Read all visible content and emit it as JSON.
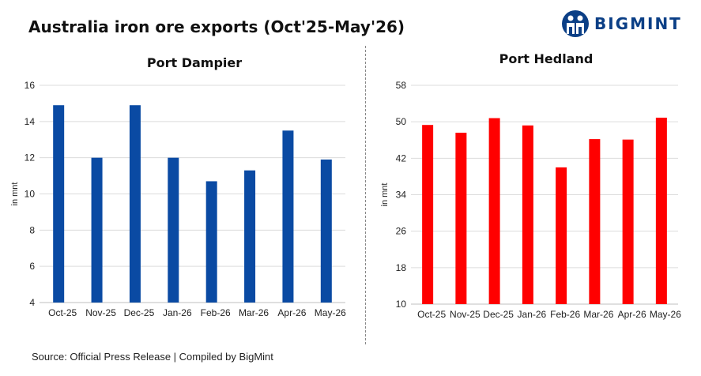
{
  "header": {
    "title": "Australia iron ore exports (Oct'25-May'26)",
    "logo_text": "BIGMINT"
  },
  "footer": {
    "source": "Source: Official Press Release | Compiled by BigMint"
  },
  "chart_data": [
    {
      "type": "bar",
      "title": "Port Dampier",
      "ylabel": "in mnt",
      "xlabel": "",
      "categories": [
        "Oct-25",
        "Nov-25",
        "Dec-25",
        "Jan-26",
        "Feb-26",
        "Mar-26",
        "Apr-26",
        "May-26"
      ],
      "values": [
        14.9,
        12.0,
        14.9,
        12.0,
        10.7,
        11.3,
        13.5,
        11.9
      ],
      "yticks": [
        4,
        6,
        8,
        10,
        12,
        14,
        16
      ],
      "ylim": [
        4,
        16
      ],
      "grid": true,
      "color": "#0a4aa3"
    },
    {
      "type": "bar",
      "title": "Port Hedland",
      "ylabel": "in mnt",
      "xlabel": "",
      "categories": [
        "Oct-25",
        "Nov-25",
        "Dec-25",
        "Jan-26",
        "Feb-26",
        "Mar-26",
        "Apr-26",
        "May-26"
      ],
      "values": [
        49.3,
        47.6,
        50.8,
        49.2,
        40.0,
        46.2,
        46.1,
        50.9
      ],
      "yticks": [
        10,
        18,
        26,
        34,
        42,
        50,
        58
      ],
      "ylim": [
        10,
        58
      ],
      "grid": true,
      "color": "#ff0000"
    }
  ]
}
